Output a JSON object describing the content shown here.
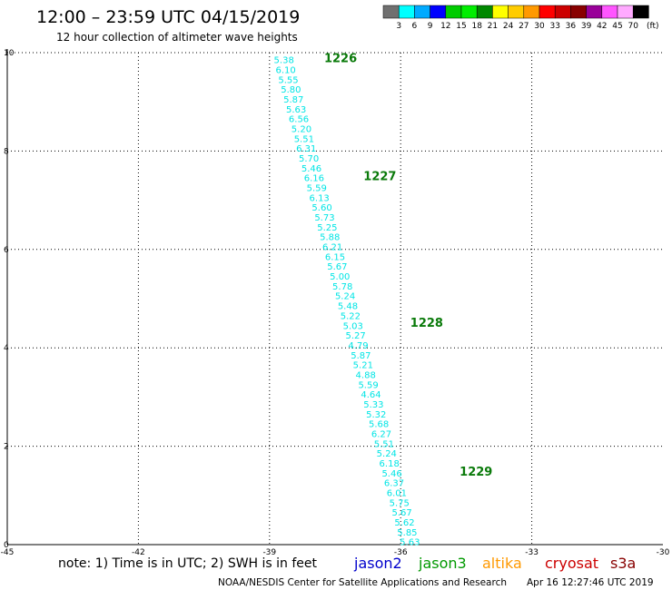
{
  "header": {
    "title": "12:00 – 23:59 UTC 04/15/2019",
    "subtitle": "12 hour collection of altimeter wave heights"
  },
  "legend": {
    "unit": "(ft)",
    "colors": [
      "#707070",
      "#00ffff",
      "#00aaff",
      "#0000ff",
      "#00cc00",
      "#00ee00",
      "#008800",
      "#ffff00",
      "#ffcc00",
      "#ff9900",
      "#ff0000",
      "#cc0000",
      "#880000",
      "#990099",
      "#ff55ff",
      "#ffaaff",
      "#000000"
    ],
    "labels": [
      "3",
      "6",
      "9",
      "12",
      "15",
      "18",
      "21",
      "24",
      "27",
      "30",
      "33",
      "36",
      "39",
      "42",
      "45",
      "70"
    ]
  },
  "chart_data": {
    "type": "scatter",
    "x_ticks": [
      "-45",
      "-42",
      "-39",
      "-36",
      "-33",
      "-30"
    ],
    "y_ticks": [
      "0",
      "2",
      "4",
      "6",
      "8",
      "10"
    ],
    "xlim": [
      -45,
      -30
    ],
    "ylim": [
      0,
      10
    ],
    "grid": true,
    "grid_style": "dotted",
    "series_color": "#00e5e5",
    "observations": [
      {
        "x": -38.67,
        "y": 9.86,
        "value": "5.38"
      },
      {
        "x": -38.63,
        "y": 9.66,
        "value": "6.10"
      },
      {
        "x": -38.57,
        "y": 9.46,
        "value": "5.55"
      },
      {
        "x": -38.51,
        "y": 9.26,
        "value": "5.80"
      },
      {
        "x": -38.45,
        "y": 9.06,
        "value": "5.87"
      },
      {
        "x": -38.39,
        "y": 8.86,
        "value": "5.63"
      },
      {
        "x": -38.33,
        "y": 8.66,
        "value": "6.56"
      },
      {
        "x": -38.27,
        "y": 8.46,
        "value": "5.20"
      },
      {
        "x": -38.21,
        "y": 8.26,
        "value": "5.51"
      },
      {
        "x": -38.16,
        "y": 8.06,
        "value": "6.31"
      },
      {
        "x": -38.1,
        "y": 7.86,
        "value": "5.70"
      },
      {
        "x": -38.04,
        "y": 7.66,
        "value": "5.46"
      },
      {
        "x": -37.98,
        "y": 7.46,
        "value": "6.16"
      },
      {
        "x": -37.92,
        "y": 7.26,
        "value": "5.59"
      },
      {
        "x": -37.86,
        "y": 7.06,
        "value": "6.13"
      },
      {
        "x": -37.8,
        "y": 6.86,
        "value": "5.60"
      },
      {
        "x": -37.74,
        "y": 6.66,
        "value": "5.73"
      },
      {
        "x": -37.68,
        "y": 6.46,
        "value": "5.25"
      },
      {
        "x": -37.62,
        "y": 6.26,
        "value": "5.88"
      },
      {
        "x": -37.56,
        "y": 6.06,
        "value": "6.21"
      },
      {
        "x": -37.5,
        "y": 5.86,
        "value": "6.15"
      },
      {
        "x": -37.45,
        "y": 5.66,
        "value": "5.67"
      },
      {
        "x": -37.39,
        "y": 5.46,
        "value": "5.00"
      },
      {
        "x": -37.33,
        "y": 5.26,
        "value": "5.78"
      },
      {
        "x": -37.27,
        "y": 5.06,
        "value": "5.24"
      },
      {
        "x": -37.21,
        "y": 4.86,
        "value": "5.48"
      },
      {
        "x": -37.15,
        "y": 4.66,
        "value": "5.22"
      },
      {
        "x": -37.09,
        "y": 4.46,
        "value": "5.03"
      },
      {
        "x": -37.03,
        "y": 4.26,
        "value": "5.27"
      },
      {
        "x": -36.97,
        "y": 4.06,
        "value": "4.79"
      },
      {
        "x": -36.91,
        "y": 3.86,
        "value": "5.87"
      },
      {
        "x": -36.86,
        "y": 3.66,
        "value": "5.21"
      },
      {
        "x": -36.8,
        "y": 3.46,
        "value": "4.88"
      },
      {
        "x": -36.74,
        "y": 3.26,
        "value": "5.59"
      },
      {
        "x": -36.68,
        "y": 3.06,
        "value": "4.64"
      },
      {
        "x": -36.62,
        "y": 2.86,
        "value": "5.33"
      },
      {
        "x": -36.56,
        "y": 2.66,
        "value": "5.32"
      },
      {
        "x": -36.5,
        "y": 2.46,
        "value": "5.68"
      },
      {
        "x": -36.44,
        "y": 2.26,
        "value": "6.27"
      },
      {
        "x": -36.38,
        "y": 2.06,
        "value": "5.51"
      },
      {
        "x": -36.32,
        "y": 1.86,
        "value": "5.24"
      },
      {
        "x": -36.26,
        "y": 1.66,
        "value": "6.18"
      },
      {
        "x": -36.2,
        "y": 1.46,
        "value": "5.46"
      },
      {
        "x": -36.15,
        "y": 1.26,
        "value": "6.37"
      },
      {
        "x": -36.09,
        "y": 1.06,
        "value": "6.01"
      },
      {
        "x": -36.03,
        "y": 0.86,
        "value": "5.75"
      },
      {
        "x": -35.97,
        "y": 0.66,
        "value": "5.67"
      },
      {
        "x": -35.91,
        "y": 0.46,
        "value": "5.62"
      },
      {
        "x": -35.85,
        "y": 0.26,
        "value": "5.85"
      },
      {
        "x": -35.79,
        "y": 0.06,
        "value": "5.63"
      }
    ],
    "pass_times": [
      {
        "x": -37.75,
        "y": 9.88,
        "label": "1226"
      },
      {
        "x": -36.85,
        "y": 7.48,
        "label": "1227"
      },
      {
        "x": -35.78,
        "y": 4.5,
        "label": "1228"
      },
      {
        "x": -34.65,
        "y": 1.48,
        "label": "1229"
      }
    ]
  },
  "footer": {
    "note": "note: 1) Time is in UTC; 2) SWH is in feet",
    "satellites": [
      {
        "name": "jason2",
        "color": "#0000cc"
      },
      {
        "name": "jason3",
        "color": "#009900"
      },
      {
        "name": "altika",
        "color": "#ff9900"
      },
      {
        "name": "cryosat",
        "color": "#cc0000"
      },
      {
        "name": "s3a",
        "color": "#880000"
      }
    ],
    "credit": "NOAA/NESDIS Center for Satellite Applications and Research",
    "timestamp": "Apr 16 12:27:46 UTC 2019"
  }
}
